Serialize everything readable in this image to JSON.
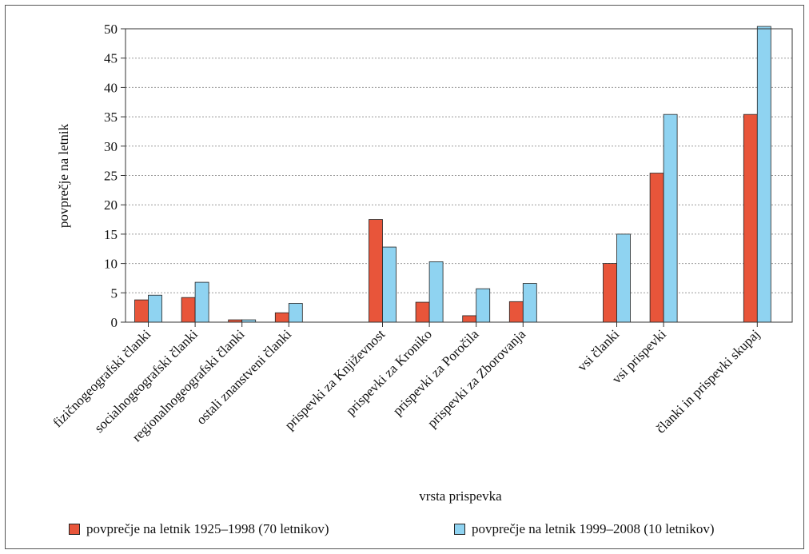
{
  "chart_data": {
    "type": "bar",
    "xlabel": "vrsta prispevka",
    "ylabel": "povprečje na letnik",
    "ylim": [
      0,
      50
    ],
    "yticks": [
      0,
      5,
      10,
      15,
      20,
      25,
      30,
      35,
      40,
      45,
      50
    ],
    "grid": true,
    "legend_position": "bottom",
    "categories": [
      "fizičnogeografski članki",
      "socialnogeografski članki",
      "regionalnogeografski članki",
      "ostali znanstveni članki",
      "prispevki za Književnost",
      "prispevki za Kroniko",
      "prispevki za Poročila",
      "prispevki za Zborovanja",
      "vsi članki",
      "vsi prispevki",
      "članki in prispevki skupaj"
    ],
    "series": [
      {
        "name": "povprečje na letnik 1925–1998 (70 letnikov)",
        "color": "#e8553a",
        "values": [
          3.8,
          4.2,
          0.4,
          1.6,
          17.5,
          3.4,
          1.1,
          3.5,
          10.0,
          25.4,
          35.4
        ]
      },
      {
        "name": "povprečje na letnik 1999–2008 (10 letnikov)",
        "color": "#8fd3f1",
        "values": [
          4.6,
          6.8,
          0.4,
          3.2,
          12.8,
          10.3,
          5.7,
          6.6,
          15.0,
          35.4,
          50.4
        ]
      }
    ]
  }
}
